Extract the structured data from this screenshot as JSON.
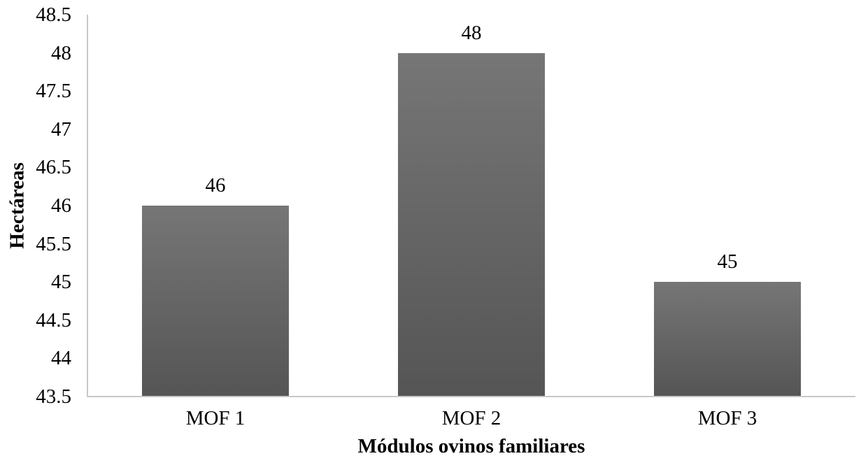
{
  "chart_data": {
    "type": "bar",
    "categories": [
      "MOF 1",
      "MOF 2",
      "MOF 3"
    ],
    "values": [
      46,
      48,
      45
    ],
    "data_labels": [
      "46",
      "48",
      "45"
    ],
    "title": "",
    "xlabel": "Módulos ovinos familiares",
    "ylabel": "Hectáreas",
    "ylim": [
      43.5,
      48.5
    ],
    "ytick_step": 0.5,
    "ytick_labels": [
      "43.5",
      "44",
      "44.5",
      "45",
      "45.5",
      "46",
      "46.5",
      "47",
      "47.5",
      "48",
      "48.5"
    ],
    "grid": false,
    "legend_position": "none",
    "bar_color_top": "#767676",
    "bar_color_bottom": "#555555",
    "axis_line_color": "#c8c8c8",
    "text_color": "#000000"
  }
}
